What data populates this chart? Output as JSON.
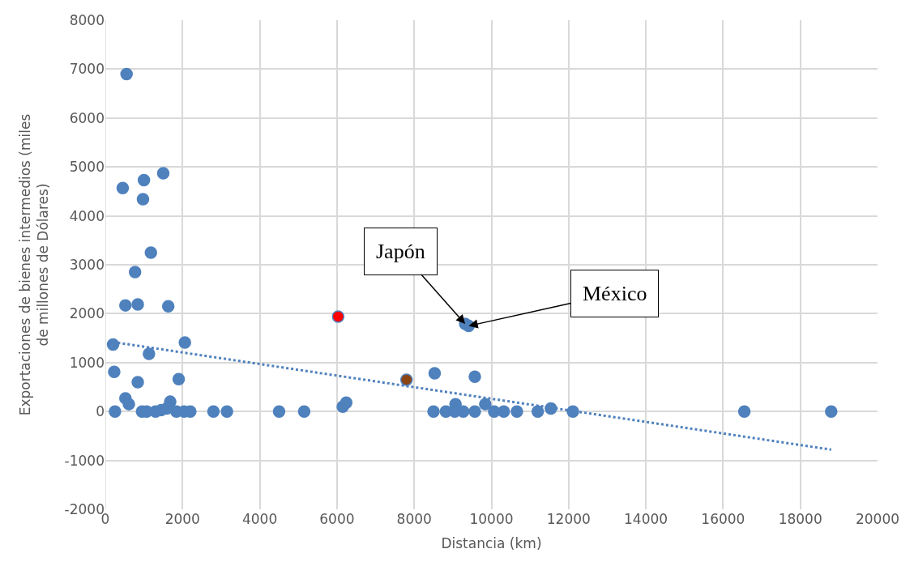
{
  "chart_data": {
    "type": "scatter",
    "xlabel": "Distancia (km)",
    "ylabel": "Exportaciones de bienes intermedios (miles de millones de Dólares)",
    "xlim": [
      0,
      20000
    ],
    "xticks": [
      0,
      2000,
      4000,
      6000,
      8000,
      10000,
      12000,
      14000,
      16000,
      18000,
      20000
    ],
    "ylim": [
      -2000,
      8000
    ],
    "yticks": [
      -2000,
      -1000,
      0,
      1000,
      2000,
      3000,
      4000,
      5000,
      6000,
      7000,
      8000
    ],
    "grid": true,
    "series": [
      {
        "color": "#4f81bd",
        "marker": "circle",
        "x": [
          550,
          450,
          1000,
          975,
          1500,
          1180,
          770,
          520,
          840,
          1630,
          200,
          2060,
          1130,
          230,
          840,
          1900,
          520,
          610,
          1680,
          250,
          950,
          1070,
          1300,
          1450,
          1590,
          1840,
          2040,
          2200,
          2800,
          3150,
          4500,
          5150,
          6150,
          6240,
          6030,
          7800,
          9320,
          9410,
          8530,
          9570,
          9070,
          9840,
          8500,
          8820,
          9050,
          9270,
          9570,
          10070,
          10320,
          10660,
          11200,
          11540,
          12110,
          16550,
          18800
        ],
        "values": [
          6900,
          4570,
          4730,
          4340,
          4870,
          3250,
          2850,
          2170,
          2190,
          2150,
          1370,
          1410,
          1180,
          810,
          600,
          660,
          270,
          150,
          200,
          0,
          0,
          0,
          0,
          30,
          60,
          0,
          0,
          0,
          0,
          0,
          0,
          0,
          100,
          180,
          1940,
          650,
          1790,
          1750,
          780,
          710,
          150,
          150,
          0,
          0,
          0,
          0,
          0,
          0,
          0,
          0,
          0,
          60,
          0,
          0,
          0
        ],
        "colors": [
          "#4f81bd",
          "#4f81bd",
          "#4f81bd",
          "#4f81bd",
          "#4f81bd",
          "#4f81bd",
          "#4f81bd",
          "#4f81bd",
          "#4f81bd",
          "#4f81bd",
          "#4f81bd",
          "#4f81bd",
          "#4f81bd",
          "#4f81bd",
          "#4f81bd",
          "#4f81bd",
          "#4f81bd",
          "#4f81bd",
          "#4f81bd",
          "#4f81bd",
          "#4f81bd",
          "#4f81bd",
          "#4f81bd",
          "#4f81bd",
          "#4f81bd",
          "#4f81bd",
          "#4f81bd",
          "#4f81bd",
          "#4f81bd",
          "#4f81bd",
          "#4f81bd",
          "#4f81bd",
          "#4f81bd",
          "#4f81bd",
          "#ff0000",
          "#8b4513",
          "#4f81bd",
          "#4f81bd",
          "#4f81bd",
          "#4f81bd",
          "#4f81bd",
          "#4f81bd",
          "#4f81bd",
          "#4f81bd",
          "#4f81bd",
          "#4f81bd",
          "#4f81bd",
          "#4f81bd",
          "#4f81bd",
          "#4f81bd",
          "#4f81bd",
          "#4f81bd",
          "#4f81bd",
          "#4f81bd",
          "#4f81bd"
        ]
      },
      {
        "type": "line",
        "color": "#4f81bd",
        "line_style": "dotted",
        "x": [
          200,
          18800
        ],
        "values": [
          1420,
          -780
        ]
      }
    ],
    "annotations": [
      {
        "text": "Japón",
        "x": 9320,
        "y": 1790
      },
      {
        "text": "México",
        "x": 9410,
        "y": 1750
      }
    ]
  }
}
